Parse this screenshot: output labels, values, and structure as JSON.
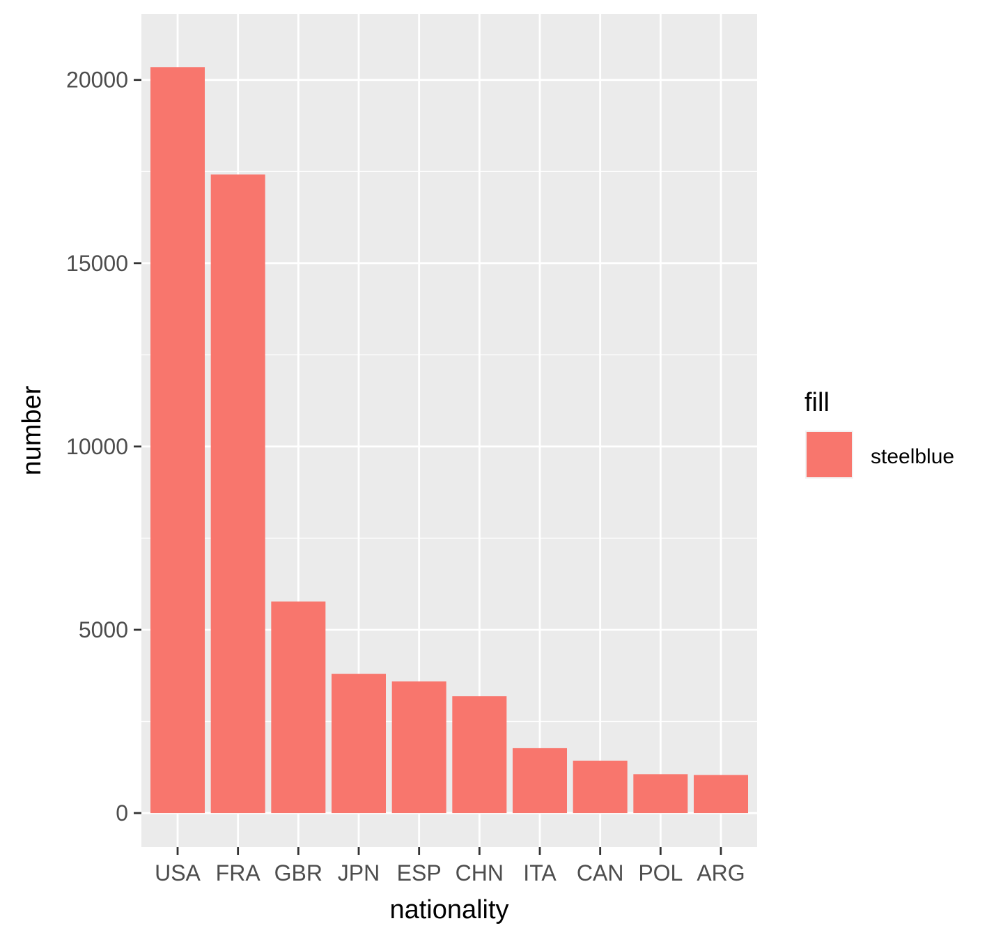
{
  "chart_data": {
    "type": "bar",
    "categories": [
      "USA",
      "FRA",
      "GBR",
      "JPN",
      "ESP",
      "CHN",
      "ITA",
      "CAN",
      "POL",
      "ARG"
    ],
    "values": [
      20350,
      17420,
      5770,
      3800,
      3590,
      3190,
      1770,
      1430,
      1060,
      1040
    ],
    "xlabel": "nationality",
    "ylabel": "number",
    "ylim": [
      -930,
      21800
    ],
    "yticks": [
      0,
      5000,
      10000,
      15000,
      20000
    ],
    "ytick_labels": [
      "0",
      "5000",
      "10000",
      "15000",
      "20000"
    ],
    "grid": true,
    "legend": {
      "title": "fill",
      "placement": "right",
      "entries": [
        {
          "label": "steelblue",
          "color": "#F8766D"
        }
      ]
    },
    "colors": {
      "bar": "#F8766D",
      "panel": "#EBEBEB",
      "grid": "#FFFFFF"
    }
  }
}
